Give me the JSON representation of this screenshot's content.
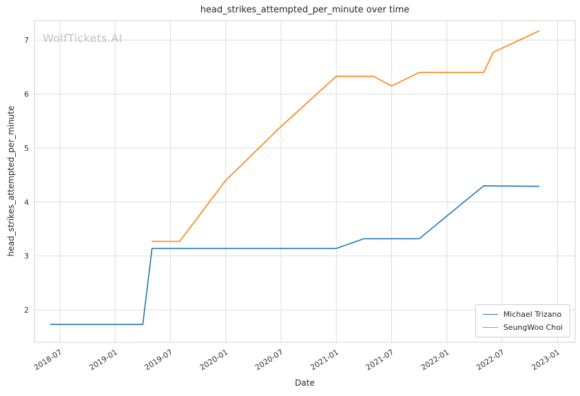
{
  "watermark": "WolfTickets.AI",
  "chart_data": {
    "type": "line",
    "title": "head_strikes_attempted_per_minute over time",
    "xlabel": "Date",
    "ylabel": "head_strikes_attempted_per_minute",
    "grid": true,
    "legend_position": "lower right",
    "x_ticks": [
      "2018-07",
      "2019-01",
      "2019-07",
      "2020-01",
      "2020-07",
      "2021-01",
      "2021-07",
      "2022-01",
      "2022-07",
      "2023-01"
    ],
    "y_ticks": [
      2,
      3,
      4,
      5,
      6,
      7
    ],
    "xlim": [
      2018.27,
      2023.16
    ],
    "ylim": [
      1.4,
      7.36
    ],
    "colors": {
      "grid": "#dcdcdc",
      "spine": "#d0d0d0",
      "text": "#262626",
      "tick_text": "#333333"
    },
    "series": [
      {
        "name": "Michael Trizano",
        "color": "#1f77b4",
        "points": [
          [
            "2018-06",
            1.73
          ],
          [
            "2019-04",
            1.73
          ],
          [
            "2019-05",
            3.14
          ],
          [
            "2021-01",
            3.14
          ],
          [
            "2021-04",
            3.32
          ],
          [
            "2021-10",
            3.32
          ],
          [
            "2022-01",
            3.74
          ],
          [
            "2022-05",
            4.3
          ],
          [
            "2022-11",
            4.29
          ]
        ]
      },
      {
        "name": "SeungWoo Choi",
        "color": "#ff7f0e",
        "points": [
          [
            "2019-05",
            3.27
          ],
          [
            "2019-08",
            3.27
          ],
          [
            "2020-01",
            4.4
          ],
          [
            "2020-07",
            5.4
          ],
          [
            "2021-01",
            6.33
          ],
          [
            "2021-05",
            6.33
          ],
          [
            "2021-07",
            6.15
          ],
          [
            "2021-10",
            6.4
          ],
          [
            "2022-05",
            6.4
          ],
          [
            "2022-06",
            6.77
          ],
          [
            "2022-11",
            7.17
          ]
        ]
      }
    ]
  }
}
